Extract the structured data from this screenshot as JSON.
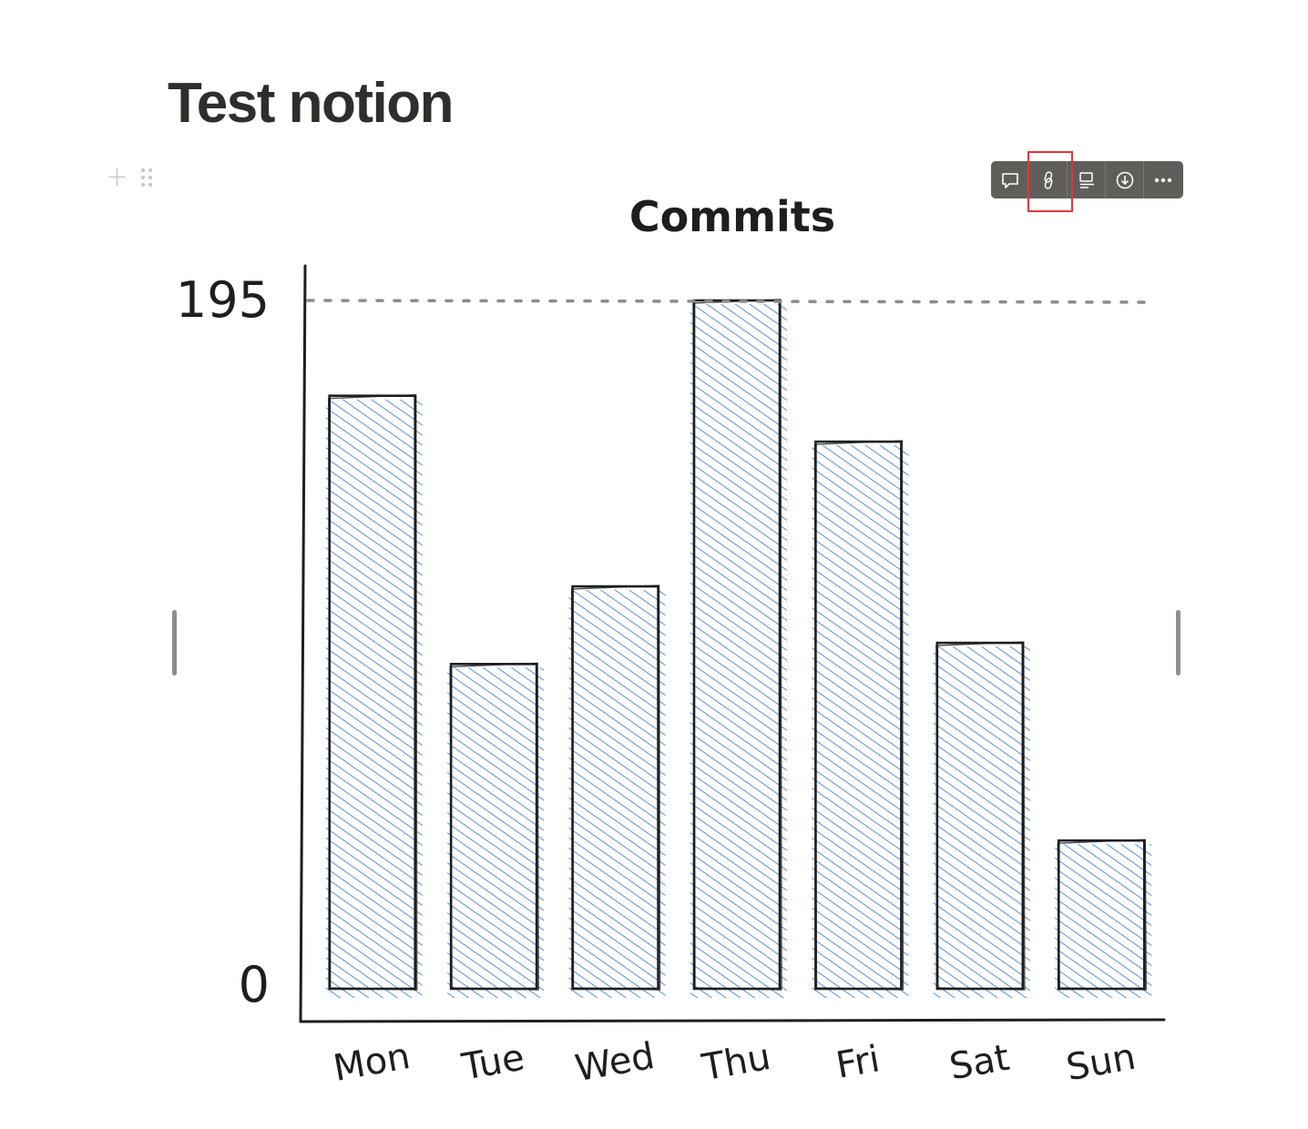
{
  "page": {
    "title": "Test notion"
  },
  "toolbar": {
    "buttons": [
      {
        "icon": "comment-icon"
      },
      {
        "icon": "link-icon"
      },
      {
        "icon": "caption-icon"
      },
      {
        "icon": "download-icon"
      },
      {
        "icon": "more-icon"
      }
    ],
    "highlighted_button": "link-icon"
  },
  "colors": {
    "bar_fill": "#2f77c9",
    "outline": "#1e1e1e",
    "toolbar_bg": "#5f5e5b",
    "highlight": "#e0363e"
  },
  "chart_data": {
    "type": "bar",
    "title": "Commits",
    "categories": [
      "Mon",
      "Tue",
      "Wed",
      "Thu",
      "Fri",
      "Sat",
      "Sun"
    ],
    "values": [
      168,
      92,
      114,
      195,
      155,
      98,
      42
    ],
    "ylim": [
      0,
      195
    ],
    "y_tick_labels": [
      "195",
      "0"
    ],
    "reference_line": 195,
    "grid": false,
    "legend": "none"
  }
}
